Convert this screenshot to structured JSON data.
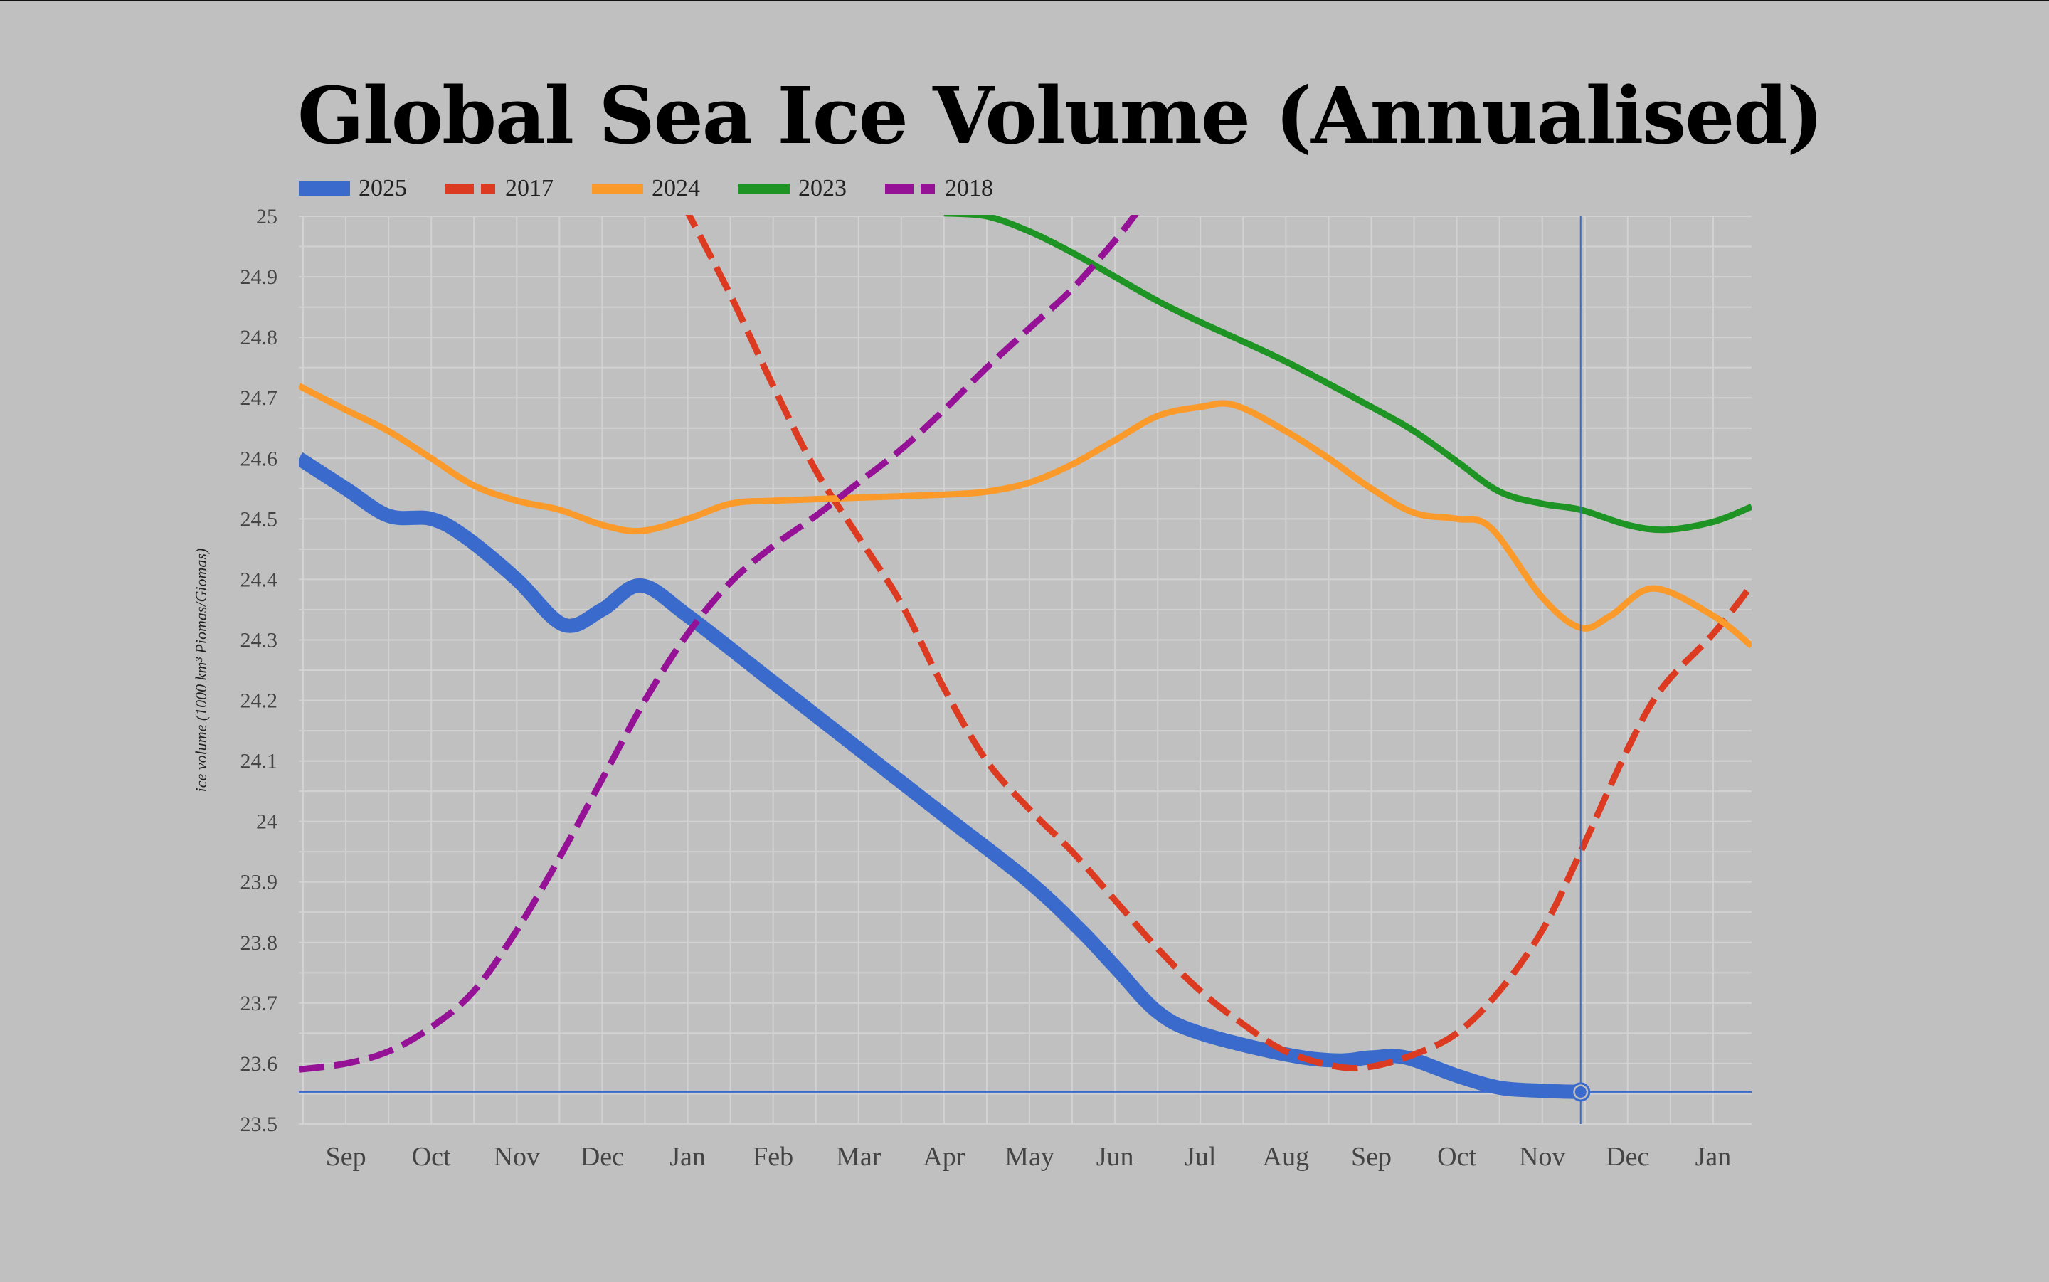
{
  "chart_data": {
    "type": "line",
    "title": "Global Sea Ice Volume (Annualised)",
    "xlabel": "",
    "ylabel": "ice volume (1000 km³ Piomas/Giomas)",
    "ylim": [
      23.5,
      25
    ],
    "yticks": [
      "25",
      "24.9",
      "24.8",
      "24.7",
      "24.6",
      "24.5",
      "24.4",
      "24.3",
      "24.2",
      "24.1",
      "24",
      "23.9",
      "23.8",
      "23.7",
      "23.6",
      "23.5"
    ],
    "xticks": [
      "Sep",
      "Oct",
      "Nov",
      "Dec",
      "Jan",
      "Feb",
      "Mar",
      "Apr",
      "May",
      "Jun",
      "Jul",
      "Aug",
      "Sep",
      "Oct",
      "Nov",
      "Dec",
      "Jan"
    ],
    "xlim_months": [
      -0.55,
      16.45
    ],
    "grid": true,
    "legend_position": "top-left",
    "crosshair": {
      "x_month": 14.45,
      "y_value": 23.553
    },
    "series": [
      {
        "name": "2025",
        "color": "#3a6bcc",
        "style": "solid-thick",
        "points": [
          [
            -0.55,
            24.6
          ],
          [
            0,
            24.55
          ],
          [
            0.5,
            24.505
          ],
          [
            1,
            24.5
          ],
          [
            1.4,
            24.47
          ],
          [
            2,
            24.4
          ],
          [
            2.55,
            24.325
          ],
          [
            3,
            24.35
          ],
          [
            3.45,
            24.39
          ],
          [
            4,
            24.34
          ],
          [
            5,
            24.23
          ],
          [
            6,
            24.12
          ],
          [
            7,
            24.01
          ],
          [
            8,
            23.9
          ],
          [
            8.6,
            23.82
          ],
          [
            9,
            23.76
          ],
          [
            9.5,
            23.685
          ],
          [
            10,
            23.65
          ],
          [
            11,
            23.615
          ],
          [
            11.6,
            23.605
          ],
          [
            12,
            23.61
          ],
          [
            12.4,
            23.61
          ],
          [
            13,
            23.58
          ],
          [
            13.5,
            23.56
          ],
          [
            14,
            23.555
          ],
          [
            14.45,
            23.553
          ]
        ]
      },
      {
        "name": "2017",
        "color": "#dc3b22",
        "style": "dashed",
        "points": [
          [
            3.95,
            25.02
          ],
          [
            4.5,
            24.87
          ],
          [
            5,
            24.72
          ],
          [
            5.5,
            24.58
          ],
          [
            6,
            24.47
          ],
          [
            6.5,
            24.36
          ],
          [
            7,
            24.22
          ],
          [
            7.5,
            24.1
          ],
          [
            8,
            24.02
          ],
          [
            8.5,
            23.95
          ],
          [
            9,
            23.87
          ],
          [
            9.5,
            23.79
          ],
          [
            10,
            23.72
          ],
          [
            10.5,
            23.665
          ],
          [
            11,
            23.62
          ],
          [
            11.6,
            23.595
          ],
          [
            12,
            23.595
          ],
          [
            12.5,
            23.615
          ],
          [
            13,
            23.65
          ],
          [
            13.5,
            23.72
          ],
          [
            14,
            23.82
          ],
          [
            14.45,
            23.95
          ],
          [
            15,
            24.12
          ],
          [
            15.4,
            24.22
          ],
          [
            16,
            24.31
          ],
          [
            16.45,
            24.39
          ]
        ]
      },
      {
        "name": "2024",
        "color": "#fa9a2a",
        "style": "solid",
        "points": [
          [
            -0.55,
            24.72
          ],
          [
            0,
            24.68
          ],
          [
            0.5,
            24.645
          ],
          [
            1,
            24.6
          ],
          [
            1.5,
            24.555
          ],
          [
            2,
            24.53
          ],
          [
            2.5,
            24.515
          ],
          [
            3,
            24.49
          ],
          [
            3.45,
            24.48
          ],
          [
            4,
            24.5
          ],
          [
            4.5,
            24.525
          ],
          [
            5,
            24.53
          ],
          [
            6,
            24.535
          ],
          [
            7,
            24.54
          ],
          [
            7.5,
            24.545
          ],
          [
            8,
            24.56
          ],
          [
            8.5,
            24.59
          ],
          [
            9,
            24.63
          ],
          [
            9.5,
            24.67
          ],
          [
            10,
            24.685
          ],
          [
            10.4,
            24.688
          ],
          [
            11,
            24.645
          ],
          [
            11.5,
            24.6
          ],
          [
            12,
            24.55
          ],
          [
            12.5,
            24.51
          ],
          [
            13,
            24.5
          ],
          [
            13.4,
            24.485
          ],
          [
            14,
            24.37
          ],
          [
            14.45,
            24.32
          ],
          [
            14.8,
            24.34
          ],
          [
            15.3,
            24.385
          ],
          [
            16,
            24.34
          ],
          [
            16.45,
            24.29
          ]
        ]
      },
      {
        "name": "2023",
        "color": "#1e9424",
        "style": "solid",
        "points": [
          [
            7,
            25.005
          ],
          [
            7.5,
            25.0
          ],
          [
            8,
            24.975
          ],
          [
            8.5,
            24.94
          ],
          [
            9,
            24.9
          ],
          [
            9.5,
            24.86
          ],
          [
            10,
            24.825
          ],
          [
            11,
            24.76
          ],
          [
            12,
            24.685
          ],
          [
            12.5,
            24.645
          ],
          [
            13,
            24.595
          ],
          [
            13.5,
            24.545
          ],
          [
            14,
            24.525
          ],
          [
            14.45,
            24.515
          ],
          [
            15,
            24.49
          ],
          [
            15.45,
            24.482
          ],
          [
            16,
            24.495
          ],
          [
            16.45,
            24.52
          ]
        ]
      },
      {
        "name": "2018",
        "color": "#951296",
        "style": "dashed",
        "points": [
          [
            -0.55,
            23.59
          ],
          [
            0,
            23.6
          ],
          [
            0.5,
            23.62
          ],
          [
            1,
            23.66
          ],
          [
            1.5,
            23.72
          ],
          [
            2,
            23.82
          ],
          [
            2.5,
            23.94
          ],
          [
            3,
            24.07
          ],
          [
            3.5,
            24.2
          ],
          [
            4,
            24.31
          ],
          [
            4.5,
            24.395
          ],
          [
            5,
            24.455
          ],
          [
            5.5,
            24.505
          ],
          [
            6,
            24.56
          ],
          [
            6.5,
            24.615
          ],
          [
            7,
            24.68
          ],
          [
            7.5,
            24.75
          ],
          [
            8,
            24.815
          ],
          [
            8.5,
            24.88
          ],
          [
            9,
            24.96
          ],
          [
            9.25,
            25.005
          ]
        ]
      }
    ]
  }
}
